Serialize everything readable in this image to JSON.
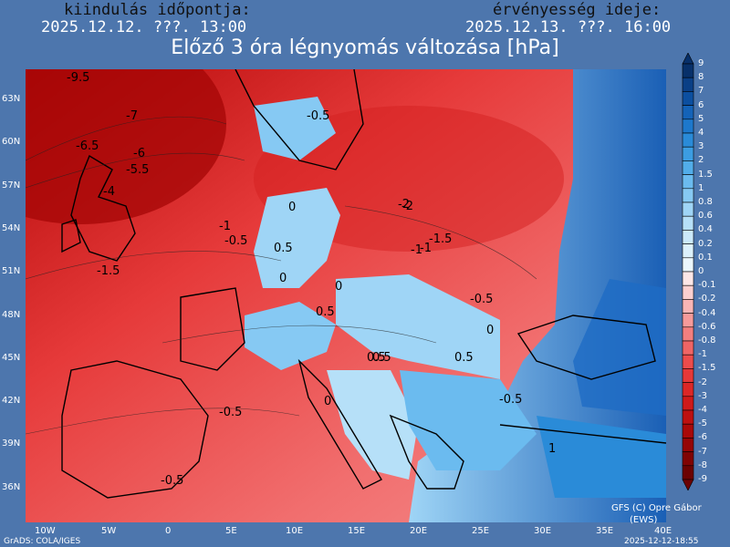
{
  "header": {
    "init_label": "kiindulás időpontja:",
    "init_time": "2025.12.12. ???. 13:00",
    "valid_label": "érvényesség ideje:",
    "valid_time": "2025.12.13. ???. 16:00"
  },
  "title": "Előző 3 óra légnyomás változása [hPa]",
  "lat_labels": [
    "63N",
    "60N",
    "57N",
    "54N",
    "51N",
    "48N",
    "45N",
    "42N",
    "39N",
    "36N"
  ],
  "lon_labels": [
    "10W",
    "5W",
    "0",
    "5E",
    "10E",
    "15E",
    "20E",
    "25E",
    "30E",
    "35E",
    "40E"
  ],
  "contour_labels": [
    "-9.5",
    "-7",
    "-6.5",
    "-6",
    "-5.5",
    "-4",
    "-2",
    "-1",
    "-0.5",
    "-1.5",
    "-0.5",
    "0.5",
    "0",
    "-0.5",
    "0.5",
    "0",
    "-1",
    "-1.5",
    "-2",
    "-1",
    "-0.5",
    "0.5",
    "0",
    "0.5",
    "0",
    "-0.5",
    "0",
    "0.5",
    "-0.5",
    "1"
  ],
  "colorbar": {
    "labels": [
      "9",
      "8",
      "7",
      "6",
      "5",
      "4",
      "3",
      "2",
      "1.5",
      "1",
      "0.8",
      "0.6",
      "0.4",
      "0.2",
      "0.1",
      "0",
      "-0.1",
      "-0.2",
      "-0.4",
      "-0.6",
      "-0.8",
      "-1",
      "-1.5",
      "-2",
      "-3",
      "-4",
      "-5",
      "-6",
      "-7",
      "-8",
      "-9"
    ],
    "colors": [
      "#07306a",
      "#0a3f86",
      "#0c4fa0",
      "#1463b8",
      "#1d78cc",
      "#2a8bd8",
      "#3c9de2",
      "#52ade9",
      "#6bbbef",
      "#86c9f3",
      "#9fd5f6",
      "#b6e0f8",
      "#cbe9fa",
      "#dcf1fc",
      "#ebf7fe",
      "#fde7e7",
      "#fbd0d0",
      "#f8b5b5",
      "#f59a9a",
      "#f27f7f",
      "#ef6565",
      "#ec4c4c",
      "#e63838",
      "#dc2727",
      "#cf1a1a",
      "#bd1010",
      "#a90909",
      "#950505",
      "#800303",
      "#6c0202"
    ]
  },
  "footer": {
    "left": "GrADS: COLA/IGES",
    "right": "2025-12-12-18:55"
  },
  "credit": {
    "line1": "GFS (C) Opre Gábor",
    "line2": "(EWS)"
  }
}
